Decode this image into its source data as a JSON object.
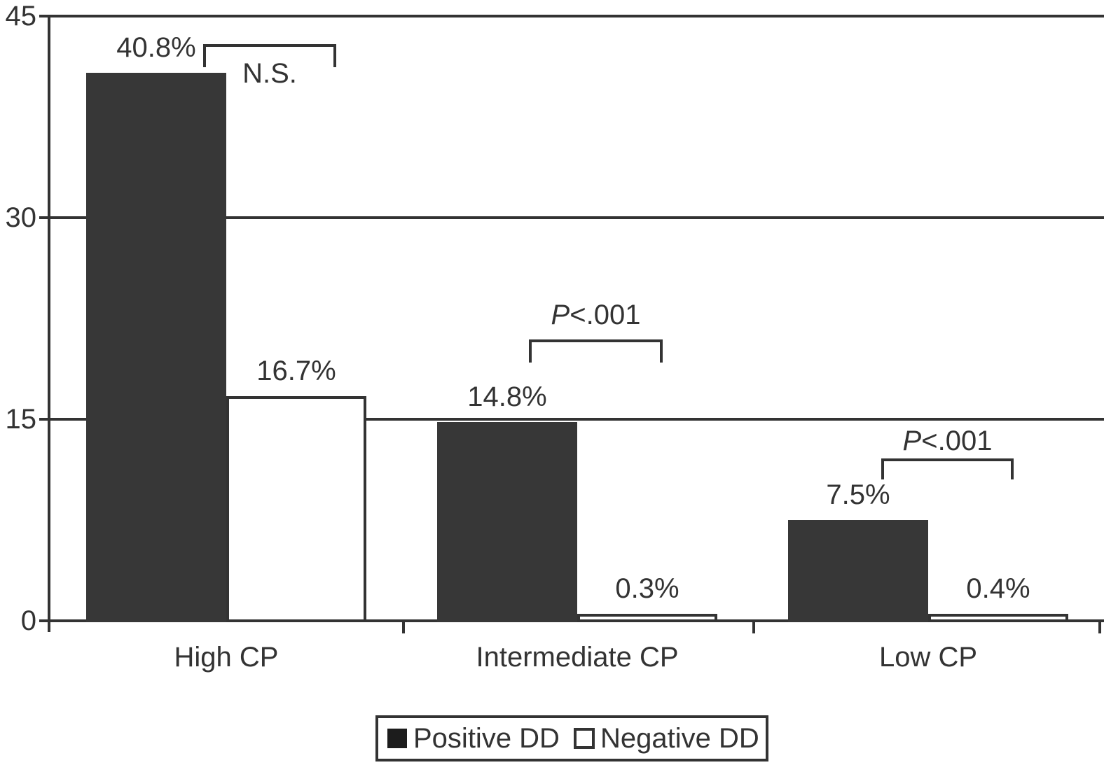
{
  "colors": {
    "bar_dark": "#373737",
    "bar_light": "#ffffff",
    "line": "#333333",
    "text": "#333333"
  },
  "chart_data": {
    "type": "bar",
    "title": "",
    "categories": [
      "High CP",
      "Intermediate CP",
      "Low CP"
    ],
    "series": [
      {
        "name": "Positive DD",
        "style": "filled-dark",
        "values": [
          40.8,
          14.8,
          7.5
        ],
        "value_labels": [
          "40.8%",
          "14.8%",
          "7.5%"
        ]
      },
      {
        "name": "Negative DD",
        "style": "open-white",
        "values": [
          16.7,
          0.3,
          0.4
        ],
        "value_labels": [
          "16.7%",
          "0.3%",
          "0.4%"
        ]
      }
    ],
    "significance_brackets": [
      {
        "category": "High CP",
        "italic": "",
        "label": "N.S."
      },
      {
        "category": "Intermediate CP",
        "italic": "P",
        "label": "<.001"
      },
      {
        "category": "Low CP",
        "italic": "P",
        "label": "<.001"
      }
    ],
    "y_axis": {
      "range": [
        0,
        45
      ],
      "ticks": [
        0,
        15,
        30,
        45
      ],
      "tick_labels": [
        "0",
        "15",
        "30",
        "45"
      ],
      "gridlines": true
    },
    "legend": {
      "position": "bottom-center",
      "border": true,
      "entries": [
        {
          "label": "Positive DD",
          "swatch": "filled-black-square"
        },
        {
          "label": "Negative DD",
          "swatch": "open-white-square"
        }
      ]
    }
  }
}
